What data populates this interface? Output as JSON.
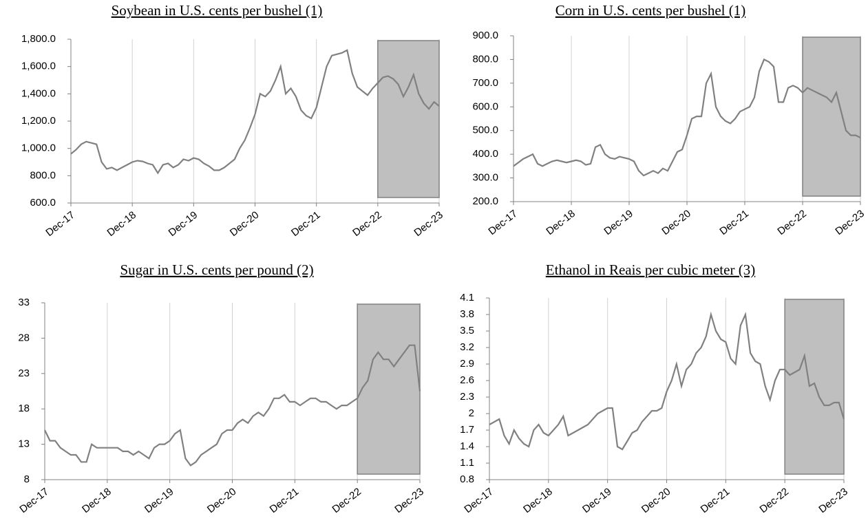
{
  "chart_data": [
    {
      "type": "line",
      "title": "Soybean in U.S. cents per bushel (1)",
      "categories": [
        "Dec-17",
        null,
        null,
        null,
        null,
        null,
        null,
        null,
        null,
        null,
        null,
        null,
        "Dec-18",
        null,
        null,
        null,
        null,
        null,
        null,
        null,
        null,
        null,
        null,
        null,
        "Dec-19",
        null,
        null,
        null,
        null,
        null,
        null,
        null,
        null,
        null,
        null,
        null,
        "Dec-20",
        null,
        null,
        null,
        null,
        null,
        null,
        null,
        null,
        null,
        null,
        null,
        "Dec-21",
        null,
        null,
        null,
        null,
        null,
        null,
        null,
        null,
        null,
        null,
        null,
        "Dec-22",
        null,
        null,
        null,
        null,
        null,
        null,
        null,
        null,
        null,
        null,
        null,
        "Dec-23"
      ],
      "values": [
        960,
        990,
        1030,
        1050,
        1040,
        1030,
        900,
        850,
        860,
        840,
        860,
        880,
        900,
        910,
        905,
        890,
        880,
        820,
        880,
        890,
        860,
        880,
        920,
        910,
        930,
        920,
        890,
        870,
        840,
        840,
        860,
        890,
        920,
        1000,
        1060,
        1150,
        1250,
        1400,
        1380,
        1420,
        1500,
        1600,
        1400,
        1440,
        1380,
        1280,
        1240,
        1220,
        1300,
        1450,
        1600,
        1680,
        1690,
        1700,
        1720,
        1550,
        1450,
        1420,
        1390,
        1440,
        1480,
        1520,
        1530,
        1510,
        1470,
        1380,
        1450,
        1540,
        1400,
        1330,
        1290,
        1340,
        1310
      ],
      "color": "#808080",
      "ylim": [
        600,
        1800
      ],
      "yticks": [
        {
          "value": 600,
          "label": "600.0"
        },
        {
          "value": 800,
          "label": "800.0"
        },
        {
          "value": 1000,
          "label": "1,000.0"
        },
        {
          "value": 1200,
          "label": "1,200.0"
        },
        {
          "value": 1400,
          "label": "1,400.0"
        },
        {
          "value": 1600,
          "label": "1,600.0"
        },
        {
          "value": 1800,
          "label": "1,800.0"
        }
      ],
      "grid": true
    },
    {
      "type": "line",
      "title": "Corn in U.S. cents per bushel (1)",
      "categories": [
        "Dec-17",
        null,
        null,
        null,
        null,
        null,
        null,
        null,
        null,
        null,
        null,
        null,
        "Dec-18",
        null,
        null,
        null,
        null,
        null,
        null,
        null,
        null,
        null,
        null,
        null,
        "Dec-19",
        null,
        null,
        null,
        null,
        null,
        null,
        null,
        null,
        null,
        null,
        null,
        "Dec-20",
        null,
        null,
        null,
        null,
        null,
        null,
        null,
        null,
        null,
        null,
        null,
        "Dec-21",
        null,
        null,
        null,
        null,
        null,
        null,
        null,
        null,
        null,
        null,
        null,
        "Dec-22",
        null,
        null,
        null,
        null,
        null,
        null,
        null,
        null,
        null,
        null,
        null,
        "Dec-23"
      ],
      "values": [
        350,
        365,
        380,
        390,
        400,
        360,
        350,
        360,
        370,
        375,
        370,
        365,
        370,
        375,
        370,
        355,
        360,
        430,
        440,
        400,
        385,
        380,
        390,
        385,
        380,
        370,
        330,
        310,
        320,
        330,
        320,
        340,
        330,
        370,
        410,
        420,
        480,
        550,
        560,
        560,
        700,
        740,
        600,
        560,
        540,
        530,
        550,
        580,
        590,
        600,
        640,
        750,
        800,
        790,
        770,
        620,
        620,
        680,
        690,
        680,
        660,
        680,
        670,
        660,
        650,
        640,
        620,
        660,
        580,
        500,
        480,
        480,
        470
      ],
      "color": "#808080",
      "ylim": [
        200,
        900
      ],
      "yticks": [
        {
          "value": 200,
          "label": "200.0"
        },
        {
          "value": 300,
          "label": "300.0"
        },
        {
          "value": 400,
          "label": "400.0"
        },
        {
          "value": 500,
          "label": "500.0"
        },
        {
          "value": 600,
          "label": "600.0"
        },
        {
          "value": 700,
          "label": "700.0"
        },
        {
          "value": 800,
          "label": "800.0"
        },
        {
          "value": 900,
          "label": "900.0"
        }
      ],
      "grid": true
    },
    {
      "type": "line",
      "title": "Sugar in U.S. cents per pound (2)",
      "categories": [
        "Dec-17",
        null,
        null,
        null,
        null,
        null,
        null,
        null,
        null,
        null,
        null,
        null,
        "Dec-18",
        null,
        null,
        null,
        null,
        null,
        null,
        null,
        null,
        null,
        null,
        null,
        "Dec-19",
        null,
        null,
        null,
        null,
        null,
        null,
        null,
        null,
        null,
        null,
        null,
        "Dec-20",
        null,
        null,
        null,
        null,
        null,
        null,
        null,
        null,
        null,
        null,
        null,
        "Dec-21",
        null,
        null,
        null,
        null,
        null,
        null,
        null,
        null,
        null,
        null,
        null,
        "Dec-22",
        null,
        null,
        null,
        null,
        null,
        null,
        null,
        null,
        null,
        null,
        null,
        "Dec-23"
      ],
      "values": [
        15,
        13.5,
        13.5,
        12.5,
        12,
        11.5,
        11.5,
        10.5,
        10.5,
        13,
        12.5,
        12.5,
        12.5,
        12.5,
        12.5,
        12,
        12,
        11.5,
        12,
        11.5,
        11,
        12.5,
        13,
        13,
        13.5,
        14.5,
        15,
        11,
        10,
        10.5,
        11.5,
        12,
        12.5,
        13,
        14.5,
        15,
        15,
        16,
        16.5,
        16,
        17,
        17.5,
        17,
        18,
        19.5,
        19.5,
        20,
        19,
        19,
        18.5,
        19,
        19.5,
        19.5,
        19,
        19,
        18.5,
        18,
        18.5,
        18.5,
        19,
        19.5,
        21,
        22,
        25,
        26,
        25,
        25,
        24,
        25,
        26,
        27,
        27,
        20.5
      ],
      "color": "#808080",
      "ylim": [
        8,
        33
      ],
      "yticks": [
        8,
        13,
        18,
        23,
        28,
        33
      ],
      "grid": true
    },
    {
      "type": "line",
      "title": "Ethanol in Reais per cubic meter (3)",
      "categories": [
        "Dec-17",
        null,
        null,
        null,
        null,
        null,
        null,
        null,
        null,
        null,
        null,
        null,
        "Dec-18",
        null,
        null,
        null,
        null,
        null,
        null,
        null,
        null,
        null,
        null,
        null,
        "Dec-19",
        null,
        null,
        null,
        null,
        null,
        null,
        null,
        null,
        null,
        null,
        null,
        "Dec-20",
        null,
        null,
        null,
        null,
        null,
        null,
        null,
        null,
        null,
        null,
        null,
        "Dec-21",
        null,
        null,
        null,
        null,
        null,
        null,
        null,
        null,
        null,
        null,
        null,
        "Dec-22",
        null,
        null,
        null,
        null,
        null,
        null,
        null,
        null,
        null,
        null,
        null,
        "Dec-23"
      ],
      "values": [
        1.8,
        1.85,
        1.9,
        1.6,
        1.45,
        1.7,
        1.55,
        1.45,
        1.4,
        1.7,
        1.8,
        1.65,
        1.6,
        1.7,
        1.8,
        1.95,
        1.6,
        1.65,
        1.7,
        1.75,
        1.8,
        1.9,
        2.0,
        2.05,
        2.1,
        2.1,
        1.4,
        1.35,
        1.5,
        1.65,
        1.7,
        1.85,
        1.95,
        2.05,
        2.05,
        2.1,
        2.4,
        2.6,
        2.9,
        2.5,
        2.8,
        2.9,
        3.1,
        3.2,
        3.4,
        3.8,
        3.5,
        3.35,
        3.3,
        3.0,
        2.9,
        3.6,
        3.8,
        3.1,
        2.95,
        2.9,
        2.5,
        2.25,
        2.6,
        2.8,
        2.8,
        2.7,
        2.75,
        2.8,
        3.05,
        2.5,
        2.55,
        2.3,
        2.15,
        2.15,
        2.2,
        2.2,
        1.9
      ],
      "color": "#808080",
      "ylim": [
        0.8,
        4.1
      ],
      "yticks": [
        0.8,
        1.1,
        1.4,
        1.7,
        2,
        2.3,
        2.6,
        2.9,
        3.2,
        3.5,
        3.8,
        4.1
      ],
      "grid": true
    }
  ]
}
